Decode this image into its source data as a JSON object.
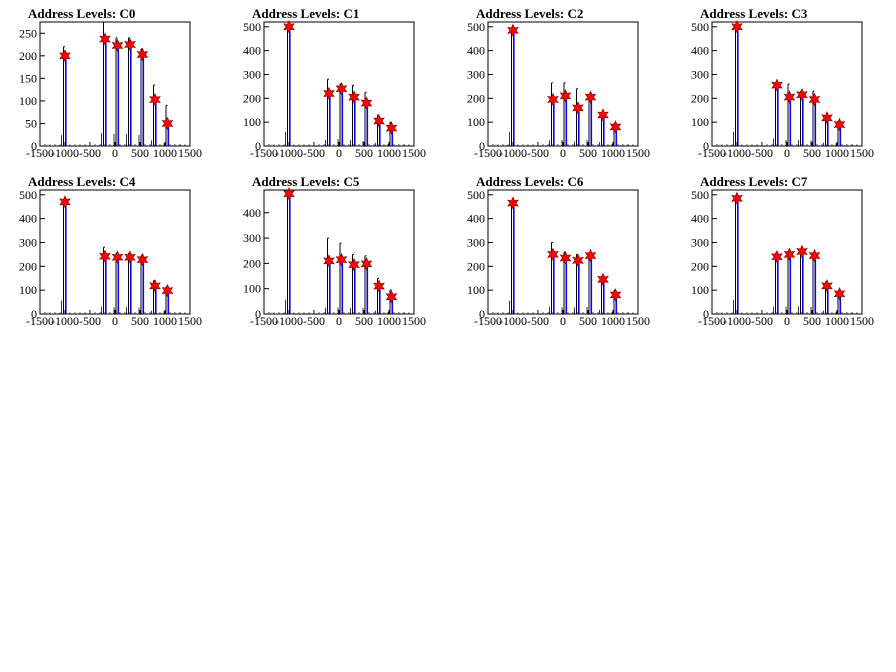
{
  "chart_data": [
    {
      "type": "bar",
      "title": "Address Levels: C0",
      "xlim": [
        -1500,
        1500
      ],
      "ylim": [
        0,
        275
      ],
      "xticks": [
        -1500,
        -1000,
        -500,
        0,
        500,
        1000,
        1500
      ],
      "yticks": [
        0,
        50,
        100,
        150,
        200,
        250
      ],
      "peaks": [
        {
          "x": -1000,
          "y": 200,
          "black": 220,
          "blue": 200
        },
        {
          "x": -200,
          "y": 237,
          "black": 275,
          "blue": 237
        },
        {
          "x": 50,
          "y": 223,
          "black": 240,
          "blue": 223
        },
        {
          "x": 300,
          "y": 225,
          "black": 240,
          "blue": 225
        },
        {
          "x": 550,
          "y": 203,
          "black": 215,
          "blue": 203
        },
        {
          "x": 800,
          "y": 103,
          "black": 135,
          "blue": 103
        },
        {
          "x": 1050,
          "y": 50,
          "black": 90,
          "blue": 50
        }
      ]
    },
    {
      "type": "bar",
      "title": "Address Levels: C1",
      "xlim": [
        -1500,
        1500
      ],
      "ylim": [
        0,
        520
      ],
      "xticks": [
        -1500,
        -1000,
        -500,
        0,
        500,
        1000,
        1500
      ],
      "yticks": [
        0,
        100,
        200,
        300,
        400,
        500
      ],
      "peaks": [
        {
          "x": -1000,
          "y": 500,
          "black": 510,
          "blue": 500
        },
        {
          "x": -200,
          "y": 220,
          "black": 280,
          "blue": 220
        },
        {
          "x": 50,
          "y": 240,
          "black": 260,
          "blue": 240
        },
        {
          "x": 300,
          "y": 205,
          "black": 255,
          "blue": 205
        },
        {
          "x": 550,
          "y": 180,
          "black": 225,
          "blue": 180
        },
        {
          "x": 800,
          "y": 105,
          "black": 130,
          "blue": 105
        },
        {
          "x": 1050,
          "y": 75,
          "black": 100,
          "blue": 75
        }
      ]
    },
    {
      "type": "bar",
      "title": "Address Levels: C2",
      "xlim": [
        -1500,
        1500
      ],
      "ylim": [
        0,
        520
      ],
      "xticks": [
        -1500,
        -1000,
        -500,
        0,
        500,
        1000,
        1500
      ],
      "yticks": [
        0,
        100,
        200,
        300,
        400,
        500
      ],
      "peaks": [
        {
          "x": -1000,
          "y": 485,
          "black": 490,
          "blue": 485
        },
        {
          "x": -200,
          "y": 195,
          "black": 265,
          "blue": 195
        },
        {
          "x": 50,
          "y": 210,
          "black": 265,
          "blue": 210
        },
        {
          "x": 300,
          "y": 160,
          "black": 240,
          "blue": 160
        },
        {
          "x": 550,
          "y": 205,
          "black": 215,
          "blue": 205
        },
        {
          "x": 800,
          "y": 130,
          "black": 140,
          "blue": 130
        },
        {
          "x": 1050,
          "y": 80,
          "black": 95,
          "blue": 80
        }
      ]
    },
    {
      "type": "bar",
      "title": "Address Levels: C3",
      "xlim": [
        -1500,
        1500
      ],
      "ylim": [
        0,
        520
      ],
      "xticks": [
        -1500,
        -1000,
        -500,
        0,
        500,
        1000,
        1500
      ],
      "yticks": [
        0,
        100,
        200,
        300,
        400,
        500
      ],
      "peaks": [
        {
          "x": -1000,
          "y": 500,
          "black": 505,
          "blue": 500
        },
        {
          "x": -200,
          "y": 255,
          "black": 265,
          "blue": 255
        },
        {
          "x": 50,
          "y": 205,
          "black": 260,
          "blue": 205
        },
        {
          "x": 300,
          "y": 215,
          "black": 230,
          "blue": 215
        },
        {
          "x": 550,
          "y": 195,
          "black": 230,
          "blue": 195
        },
        {
          "x": 800,
          "y": 118,
          "black": 130,
          "blue": 118
        },
        {
          "x": 1050,
          "y": 90,
          "black": 105,
          "blue": 90
        }
      ]
    },
    {
      "type": "bar",
      "title": "Address Levels: C4",
      "xlim": [
        -1500,
        1500
      ],
      "ylim": [
        0,
        520
      ],
      "xticks": [
        -1500,
        -1000,
        -500,
        0,
        500,
        1000,
        1500
      ],
      "yticks": [
        0,
        100,
        200,
        300,
        400,
        500
      ],
      "peaks": [
        {
          "x": -1000,
          "y": 470,
          "black": 480,
          "blue": 470
        },
        {
          "x": -200,
          "y": 242,
          "black": 280,
          "blue": 242
        },
        {
          "x": 50,
          "y": 238,
          "black": 255,
          "blue": 238
        },
        {
          "x": 300,
          "y": 238,
          "black": 255,
          "blue": 238
        },
        {
          "x": 550,
          "y": 228,
          "black": 245,
          "blue": 228
        },
        {
          "x": 800,
          "y": 118,
          "black": 140,
          "blue": 118
        },
        {
          "x": 1050,
          "y": 98,
          "black": 115,
          "blue": 98
        }
      ]
    },
    {
      "type": "bar",
      "title": "Address Levels: C5",
      "xlim": [
        -1500,
        1500
      ],
      "ylim": [
        0,
        490
      ],
      "xticks": [
        -1500,
        -1000,
        -500,
        0,
        500,
        1000,
        1500
      ],
      "yticks": [
        0,
        100,
        200,
        300,
        400
      ],
      "peaks": [
        {
          "x": -1000,
          "y": 475,
          "black": 480,
          "blue": 475
        },
        {
          "x": -200,
          "y": 210,
          "black": 300,
          "blue": 210
        },
        {
          "x": 50,
          "y": 215,
          "black": 280,
          "blue": 215
        },
        {
          "x": 300,
          "y": 195,
          "black": 235,
          "blue": 195
        },
        {
          "x": 550,
          "y": 198,
          "black": 230,
          "blue": 198
        },
        {
          "x": 800,
          "y": 110,
          "black": 140,
          "blue": 110
        },
        {
          "x": 1050,
          "y": 68,
          "black": 95,
          "blue": 68
        }
      ]
    },
    {
      "type": "bar",
      "title": "Address Levels: C6",
      "xlim": [
        -1500,
        1500
      ],
      "ylim": [
        0,
        520
      ],
      "xticks": [
        -1500,
        -1000,
        -500,
        0,
        500,
        1000,
        1500
      ],
      "yticks": [
        0,
        100,
        200,
        300,
        400,
        500
      ],
      "peaks": [
        {
          "x": -1000,
          "y": 465,
          "black": 470,
          "blue": 465
        },
        {
          "x": -200,
          "y": 250,
          "black": 300,
          "blue": 250
        },
        {
          "x": 50,
          "y": 235,
          "black": 260,
          "blue": 235
        },
        {
          "x": 300,
          "y": 225,
          "black": 250,
          "blue": 225
        },
        {
          "x": 550,
          "y": 245,
          "black": 250,
          "blue": 245
        },
        {
          "x": 800,
          "y": 145,
          "black": 160,
          "blue": 145
        },
        {
          "x": 1050,
          "y": 80,
          "black": 100,
          "blue": 80
        }
      ]
    },
    {
      "type": "bar",
      "title": "Address Levels: C7",
      "xlim": [
        -1500,
        1500
      ],
      "ylim": [
        0,
        520
      ],
      "xticks": [
        -1500,
        -1000,
        -500,
        0,
        500,
        1000,
        1500
      ],
      "yticks": [
        0,
        100,
        200,
        300,
        400,
        500
      ],
      "peaks": [
        {
          "x": -1000,
          "y": 485,
          "black": 490,
          "blue": 485
        },
        {
          "x": -200,
          "y": 240,
          "black": 255,
          "blue": 240
        },
        {
          "x": 50,
          "y": 250,
          "black": 265,
          "blue": 250
        },
        {
          "x": 300,
          "y": 262,
          "black": 270,
          "blue": 262
        },
        {
          "x": 550,
          "y": 245,
          "black": 255,
          "blue": 245
        },
        {
          "x": 800,
          "y": 118,
          "black": 135,
          "blue": 118
        },
        {
          "x": 1050,
          "y": 85,
          "black": 95,
          "blue": 85
        }
      ]
    }
  ],
  "colors": {
    "primary_hist": "#0000ff",
    "secondary_hist": "#000000",
    "peak_marker": "#ff0000",
    "marker_edge": "#7a0000"
  }
}
